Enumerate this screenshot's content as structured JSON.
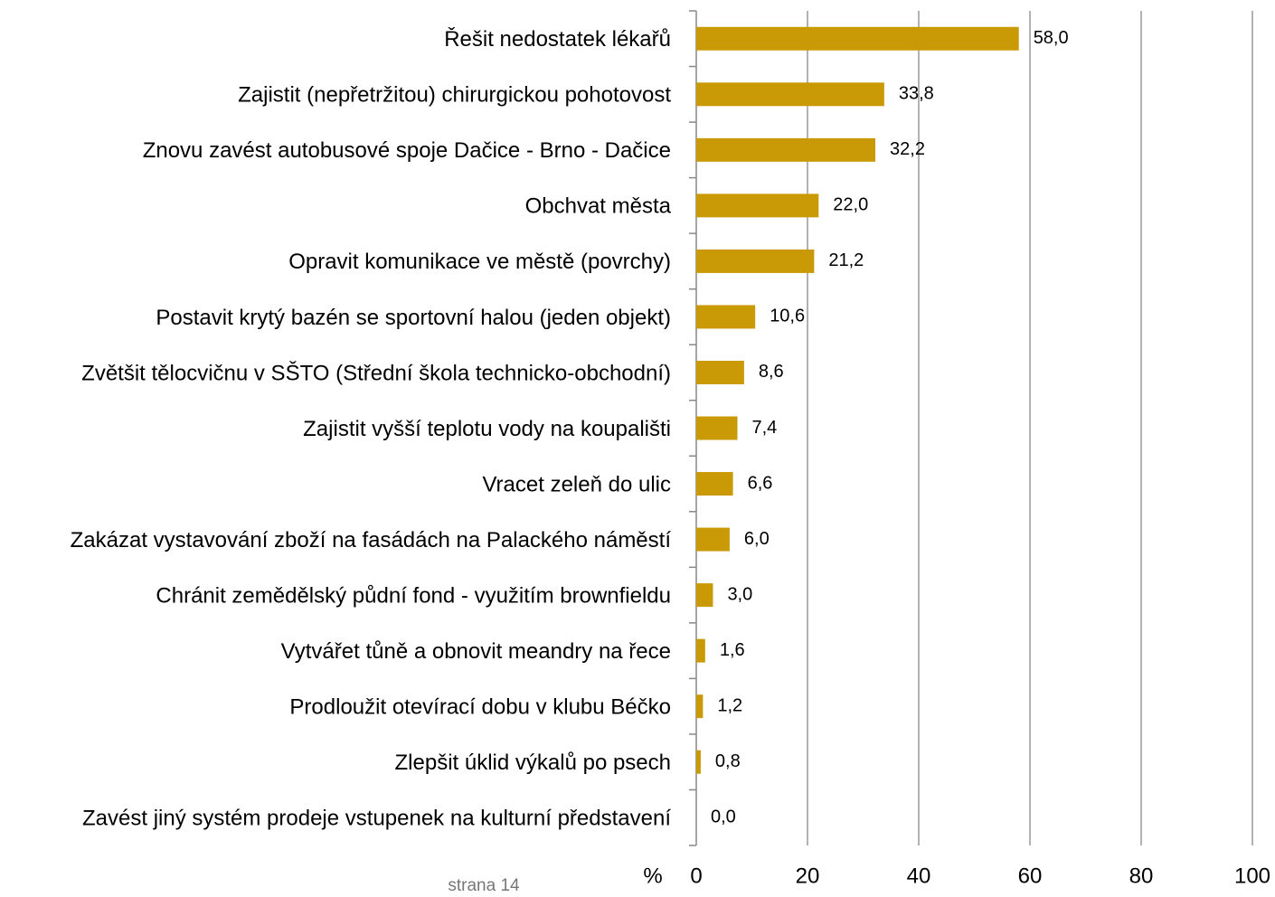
{
  "chart_data": {
    "type": "bar",
    "orientation": "horizontal",
    "categories": [
      "Řešit nedostatek lékařů",
      "Zajistit (nepřetržitou) chirurgickou pohotovost",
      "Znovu zavést autobusové spoje Dačice - Brno - Dačice",
      "Obchvat města",
      "Opravit komunikace ve městě (povrchy)",
      "Postavit krytý bazén se sportovní halou (jeden objekt)",
      "Zvětšit tělocvičnu v SŠTO (Střední škola technicko-obchodní)",
      "Zajistit vyšší teplotu vody na koupališti",
      "Vracet zeleň do ulic",
      "Zakázat vystavování zboží na fasádách na Palackého náměstí",
      "Chránit zemědělský půdní fond - využitím brownfieldu",
      "Vytvářet tůně a obnovit meandry na řece",
      "Prodloužit otevírací dobu v klubu Béčko",
      "Zlepšit úklid výkalů po psech",
      "Zavést jiný systém prodeje vstupenek na kulturní představení"
    ],
    "values": [
      58.0,
      33.8,
      32.2,
      22.0,
      21.2,
      10.6,
      8.6,
      7.4,
      6.6,
      6.0,
      3.0,
      1.6,
      1.2,
      0.8,
      0.0
    ],
    "value_labels": [
      "58,0",
      "33,8",
      "32,2",
      "22,0",
      "21,2",
      "10,6",
      "8,6",
      "7,4",
      "6,6",
      "6,0",
      "3,0",
      "1,6",
      "1,2",
      "0,8",
      "0,0"
    ],
    "color": "#c99a06",
    "xlabel": "%",
    "xlim": [
      0,
      100
    ],
    "xticks": [
      0,
      20,
      40,
      60,
      80,
      100
    ],
    "grid": true,
    "footer": "strana 14"
  }
}
